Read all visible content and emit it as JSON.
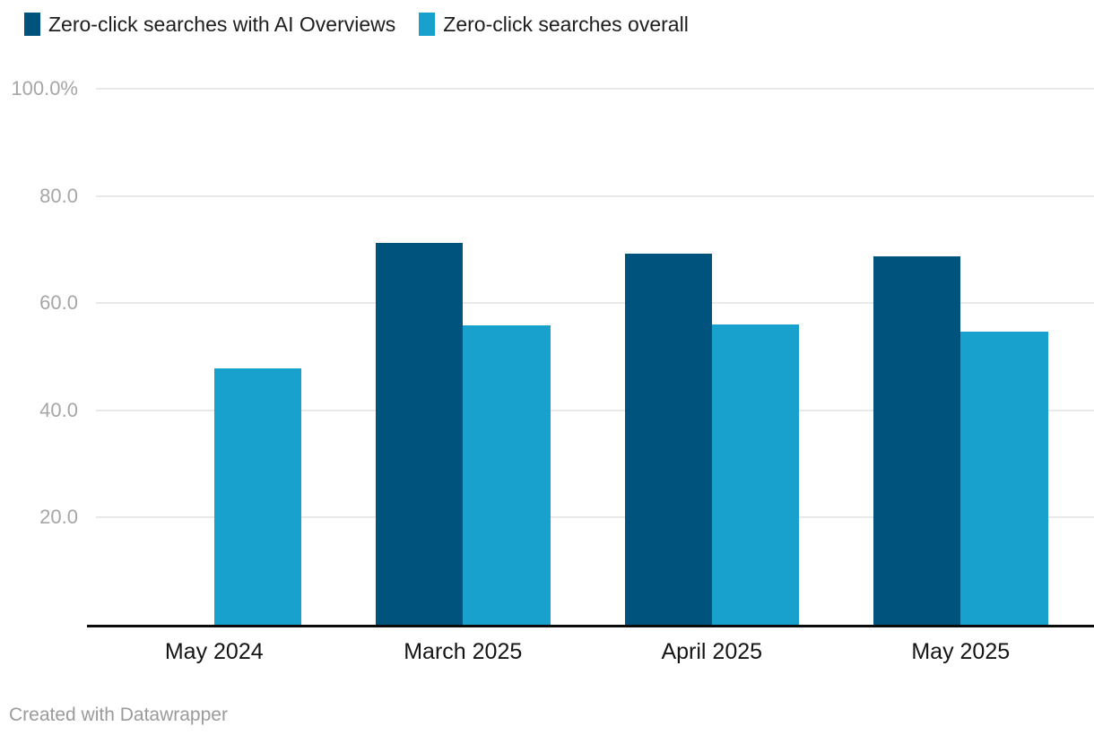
{
  "legend": {
    "items": [
      {
        "label": "Zero-click searches with AI Overviews",
        "color": "#00537d"
      },
      {
        "label": "Zero-click searches overall",
        "color": "#18a1cd"
      }
    ]
  },
  "chart_data": {
    "type": "bar",
    "title": "",
    "categories": [
      "May 2024",
      "March 2025",
      "April 2025",
      "May 2025"
    ],
    "series": [
      {
        "name": "Zero-click searches with AI Overviews",
        "color": "#00537d",
        "values": [
          null,
          71.2,
          69.2,
          68.7
        ]
      },
      {
        "name": "Zero-click searches overall",
        "color": "#18a1cd",
        "values": [
          47.8,
          55.9,
          56.0,
          54.7
        ]
      }
    ],
    "unit": "%",
    "ylim": [
      0,
      100
    ],
    "yticks": [
      {
        "value": 20,
        "label": "20.0"
      },
      {
        "value": 40,
        "label": "40.0"
      },
      {
        "value": 60,
        "label": "60.0"
      },
      {
        "value": 80,
        "label": "80.0"
      },
      {
        "value": 100,
        "label": "100.0%"
      }
    ],
    "grid": true,
    "legend_position": "top"
  },
  "footer": {
    "credit": "Created with Datawrapper"
  }
}
